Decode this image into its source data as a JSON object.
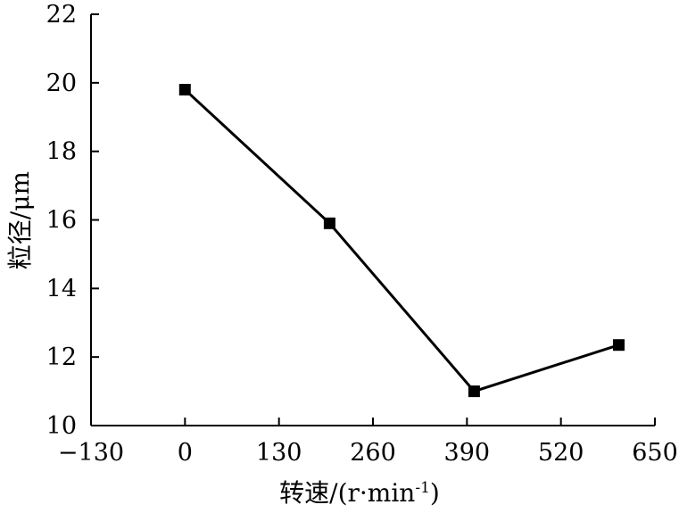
{
  "chart_data": {
    "type": "line",
    "title": "",
    "xlabel": "转速/(r·min",
    "xlabel_sup": "-1",
    "xlabel_suffix": ")",
    "ylabel": "粒径/μm",
    "xlim": [
      -130,
      650
    ],
    "ylim": [
      10,
      22
    ],
    "x_ticks": [
      -130,
      0,
      130,
      260,
      390,
      520,
      650
    ],
    "x_tick_labels": [
      "−130",
      "0",
      "130",
      "260",
      "390",
      "520",
      "650"
    ],
    "y_ticks": [
      10,
      12,
      14,
      16,
      18,
      20,
      22
    ],
    "y_tick_labels": [
      "10",
      "12",
      "14",
      "16",
      "18",
      "20",
      "22"
    ],
    "grid": false,
    "legend": "none",
    "marker": "square",
    "color": "#000000",
    "series": [
      {
        "x": [
          0,
          200,
          400,
          600
        ],
        "values": [
          19.8,
          15.9,
          11.0,
          12.35
        ]
      }
    ]
  }
}
